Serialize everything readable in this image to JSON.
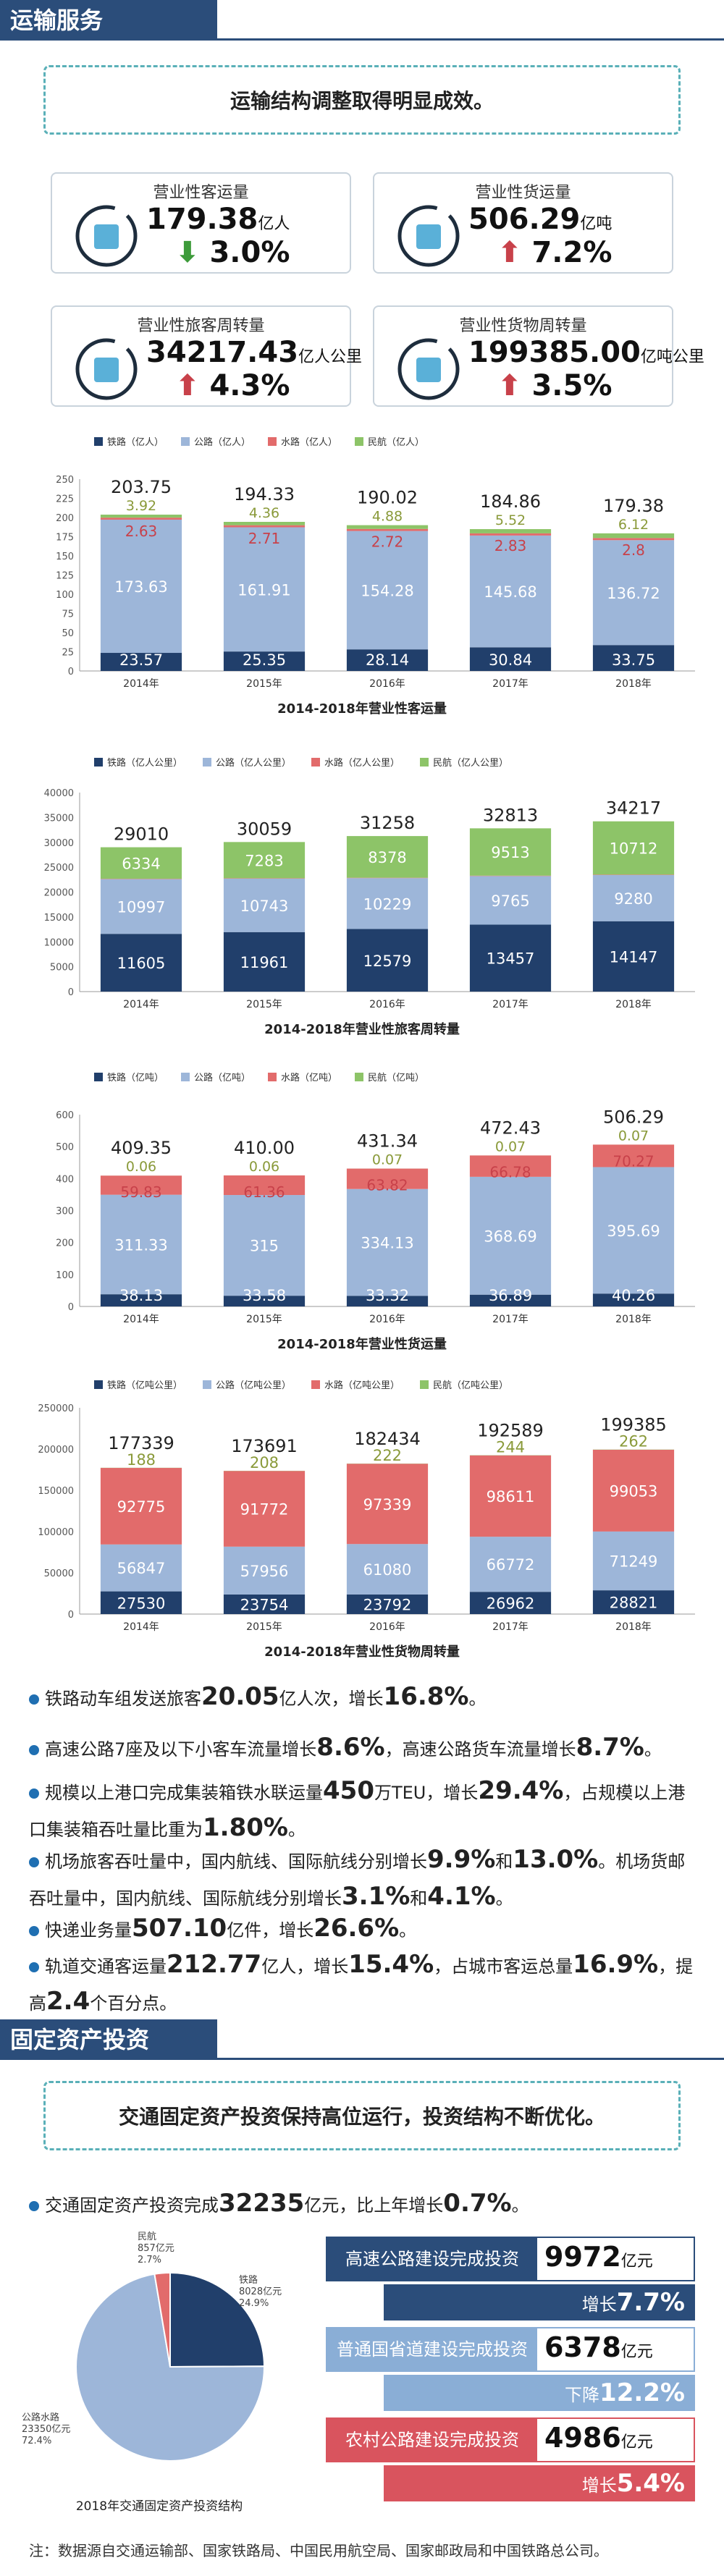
{
  "section1": {
    "title": "运输服务",
    "banner": "运输结构调整取得明显成效。"
  },
  "cards": [
    {
      "title": "营业性客运量",
      "value": "179.38",
      "unit": "亿人",
      "change": "3.0%",
      "dir": "down",
      "arrow": "⬇",
      "icon": "traveler-icon"
    },
    {
      "title": "营业性货运量",
      "value": "506.29",
      "unit": "亿吨",
      "change": "7.2%",
      "dir": "up",
      "arrow": "⬆",
      "icon": "cargo-box-icon"
    },
    {
      "title": "营业性旅客周转量",
      "value": "34217.43",
      "unit": "亿人公里",
      "change": "4.3%",
      "dir": "up",
      "arrow": "⬆",
      "icon": "traveler-cycle-icon"
    },
    {
      "title": "营业性货物周转量",
      "value": "199385.00",
      "unit": "亿吨公里",
      "change": "3.5%",
      "dir": "up",
      "arrow": "⬆",
      "icon": "cargo-cycle-icon"
    }
  ],
  "chart_data": [
    {
      "type": "bar",
      "stacked": true,
      "title": "2014-2018年营业性客运量",
      "categories": [
        "2014年",
        "2015年",
        "2016年",
        "2017年",
        "2018年"
      ],
      "series": [
        {
          "name": "铁路（亿人）",
          "color": "#213f6b",
          "values": [
            23.57,
            25.35,
            28.14,
            30.84,
            33.75
          ]
        },
        {
          "name": "公路（亿人）",
          "color": "#9db6d9",
          "values": [
            173.63,
            161.91,
            154.28,
            145.68,
            136.72
          ]
        },
        {
          "name": "水路（亿人）",
          "color": "#e26b6b",
          "values": [
            2.63,
            2.71,
            2.72,
            2.83,
            2.8
          ]
        },
        {
          "name": "民航（亿人）",
          "color": "#8dc468",
          "values": [
            3.92,
            4.36,
            4.88,
            5.52,
            6.12
          ]
        }
      ],
      "totals": [
        "203.75",
        "194.33",
        "190.02",
        "184.86",
        "179.38"
      ],
      "ylim": [
        0,
        250
      ],
      "ticks": [
        0,
        25,
        50,
        75,
        100,
        125,
        150,
        175,
        200,
        225,
        250
      ],
      "grid": false,
      "legend": "top-left"
    },
    {
      "type": "bar",
      "stacked": true,
      "title": "2014-2018年营业性旅客周转量",
      "categories": [
        "2014年",
        "2015年",
        "2016年",
        "2017年",
        "2018年"
      ],
      "series": [
        {
          "name": "铁路（亿人公里）",
          "color": "#213f6b",
          "values": [
            11605,
            11961,
            12579,
            13457,
            14147
          ]
        },
        {
          "name": "公路（亿人公里）",
          "color": "#9db6d9",
          "values": [
            10997,
            10743,
            10229,
            9765,
            9280
          ]
        },
        {
          "name": "水路（亿人公里）",
          "color": "#e26b6b",
          "values": [
            74,
            73,
            72,
            78,
            80
          ]
        },
        {
          "name": "民航（亿人公里）",
          "color": "#8dc468",
          "values": [
            6334,
            7283,
            8378,
            9513,
            10712
          ]
        }
      ],
      "totals": [
        "29010",
        "30059",
        "31258",
        "32813",
        "34217"
      ],
      "ylim": [
        0,
        40000
      ],
      "ticks": [
        0,
        5000,
        10000,
        15000,
        20000,
        25000,
        30000,
        35000,
        40000
      ],
      "grid": false,
      "legend": "top-left"
    },
    {
      "type": "bar",
      "stacked": true,
      "title": "2014-2018年营业性货运量",
      "categories": [
        "2014年",
        "2015年",
        "2016年",
        "2017年",
        "2018年"
      ],
      "series": [
        {
          "name": "铁路（亿吨）",
          "color": "#213f6b",
          "values": [
            38.13,
            33.58,
            33.32,
            36.89,
            40.26
          ]
        },
        {
          "name": "公路（亿吨）",
          "color": "#9db6d9",
          "values": [
            311.33,
            315.0,
            334.13,
            368.69,
            395.69
          ]
        },
        {
          "name": "水路（亿吨）",
          "color": "#e26b6b",
          "values": [
            59.83,
            61.36,
            63.82,
            66.78,
            70.27
          ]
        },
        {
          "name": "民航（亿吨）",
          "color": "#8dc468",
          "values": [
            0.06,
            0.06,
            0.07,
            0.07,
            0.07
          ]
        }
      ],
      "totals": [
        "409.35",
        "410.00",
        "431.34",
        "472.43",
        "506.29"
      ],
      "ylim": [
        0,
        600
      ],
      "ticks": [
        0,
        100,
        200,
        300,
        400,
        500,
        600
      ],
      "grid": false,
      "legend": "top-left"
    },
    {
      "type": "bar",
      "stacked": true,
      "title": "2014-2018年营业性货物周转量",
      "categories": [
        "2014年",
        "2015年",
        "2016年",
        "2017年",
        "2018年"
      ],
      "series": [
        {
          "name": "铁路（亿吨公里）",
          "color": "#213f6b",
          "values": [
            27530,
            23754,
            23792,
            26962,
            28821
          ]
        },
        {
          "name": "公路（亿吨公里）",
          "color": "#9db6d9",
          "values": [
            56847,
            57956,
            61080,
            66772,
            71249
          ]
        },
        {
          "name": "水路（亿吨公里）",
          "color": "#e26b6b",
          "values": [
            92775,
            91772,
            97339,
            98611,
            99053
          ]
        },
        {
          "name": "民航（亿吨公里）",
          "color": "#8dc468",
          "values": [
            188,
            208,
            222,
            244,
            262
          ]
        }
      ],
      "totals": [
        "177339",
        "173691",
        "182434",
        "192589",
        "199385"
      ],
      "ylim": [
        0,
        250000
      ],
      "ticks": [
        0,
        50000,
        100000,
        150000,
        200000,
        250000
      ],
      "grid": false,
      "legend": "top-left"
    },
    {
      "type": "pie",
      "title": "2018年交通固定资产投资结构",
      "slices": [
        {
          "name": "铁路",
          "value": 8028,
          "label": "8028亿元",
          "pct": "24.9%",
          "color": "#213f6b"
        },
        {
          "name": "公路水路",
          "value": 23350,
          "label": "23350亿元",
          "pct": "72.4%",
          "color": "#9db6d9"
        },
        {
          "name": "民航",
          "value": 857,
          "label": "857亿元",
          "pct": "2.7%",
          "color": "#e26b6b"
        }
      ]
    }
  ],
  "bullets": [
    [
      {
        "t": "铁路动车组发送旅客"
      },
      {
        "t": "20.05",
        "b": true
      },
      {
        "t": "亿人次，增长"
      },
      {
        "t": "16.8%",
        "b": true
      },
      {
        "t": "。"
      }
    ],
    [
      {
        "t": "高速公路7座及以下小客车流量增长"
      },
      {
        "t": "8.6%",
        "b": true
      },
      {
        "t": "，高速公路货车流量增长"
      },
      {
        "t": "8.7%",
        "b": true
      },
      {
        "t": "。"
      }
    ],
    [
      {
        "t": "规模以上港口完成集装箱铁水联运量"
      },
      {
        "t": "450",
        "b": true
      },
      {
        "t": "万TEU，增长"
      },
      {
        "t": "29.4%",
        "b": true
      },
      {
        "t": "，占规模以上港口集装箱吞吐量比重为"
      },
      {
        "t": "1.80%",
        "b": true
      },
      {
        "t": "。"
      }
    ],
    [
      {
        "t": "机场旅客吞吐量中，国内航线、国际航线分别增长"
      },
      {
        "t": "9.9%",
        "b": true
      },
      {
        "t": "和"
      },
      {
        "t": "13.0%",
        "b": true
      },
      {
        "t": "。机场货邮吞吐量中，国内航线、国际航线分别增长"
      },
      {
        "t": "3.1%",
        "b": true
      },
      {
        "t": "和"
      },
      {
        "t": "4.1%",
        "b": true
      },
      {
        "t": "。"
      }
    ],
    [
      {
        "t": "快递业务量"
      },
      {
        "t": "507.10",
        "b": true
      },
      {
        "t": "亿件，增长"
      },
      {
        "t": "26.6%",
        "b": true
      },
      {
        "t": "。"
      }
    ],
    [
      {
        "t": "轨道交通客运量"
      },
      {
        "t": "212.77",
        "b": true
      },
      {
        "t": "亿人，增长"
      },
      {
        "t": "15.4%",
        "b": true
      },
      {
        "t": "，占城市客运总量"
      },
      {
        "t": "16.9%",
        "b": true
      },
      {
        "t": "，提高"
      },
      {
        "t": "2.4",
        "b": true
      },
      {
        "t": "个百分点。"
      }
    ]
  ],
  "section2": {
    "title": "固定资产投资",
    "banner": "交通固定资产投资保持高位运行，投资结构不断优化。"
  },
  "invest_bullet": [
    {
      "t": "交通固定资产投资完成"
    },
    {
      "t": "32235",
      "b": true
    },
    {
      "t": "亿元，比上年增长"
    },
    {
      "t": "0.7%",
      "b": true
    },
    {
      "t": "。"
    }
  ],
  "invest_rows": [
    {
      "label": "高速公路建设完成投资",
      "value": "9972",
      "unit": "亿元",
      "chg_label": "增长",
      "chg": "7.7%",
      "color": "#2b4d7a"
    },
    {
      "label": "普通国省道建设完成投资",
      "value": "6378",
      "unit": "亿元",
      "chg_label": "下降",
      "chg": "12.2%",
      "color": "#8aaed6"
    },
    {
      "label": "农村公路建设完成投资",
      "value": "4986",
      "unit": "亿元",
      "chg_label": "增长",
      "chg": "5.4%",
      "color": "#d9545e"
    }
  ],
  "footer": "注：数据源自交通运输部、国家铁路局、中国民用航空局、国家邮政局和中国铁路总公司。"
}
